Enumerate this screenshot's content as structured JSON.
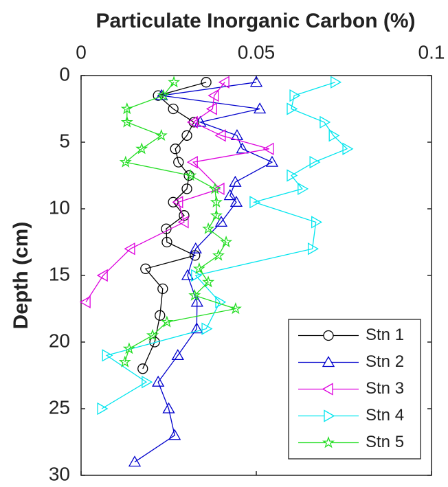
{
  "chart_data": {
    "type": "line",
    "title": "Particulate Inorganic Carbon (%)",
    "y_label": "Depth (cm)",
    "xlim": [
      0,
      0.1
    ],
    "xticks": [
      0,
      0.05,
      0.1
    ],
    "ylim": [
      0,
      30
    ],
    "yticks": [
      0,
      5,
      10,
      15,
      20,
      25,
      30
    ],
    "y_inverted": true,
    "x_axis_position": "top",
    "legend": "lower right",
    "series": [
      {
        "name": "Stn 1",
        "color": "#000000",
        "marker": "circle",
        "x": [
          0.0357,
          0.022,
          0.0263,
          0.0322,
          0.0302,
          0.0269,
          0.0278,
          0.0308,
          0.0302,
          0.0263,
          0.0294,
          0.0243,
          0.0245,
          0.0325,
          0.0184,
          0.0233,
          0.0225,
          0.021,
          0.0176
        ],
        "y": [
          0.5,
          1.5,
          2.5,
          3.5,
          4.5,
          5.5,
          6.5,
          7.5,
          8.5,
          9.5,
          10.5,
          11.5,
          12.5,
          13.5,
          14.5,
          16,
          18,
          20,
          22
        ]
      },
      {
        "name": "Stn 2",
        "color": "#0000cc",
        "marker": "triangle-up",
        "x": [
          0.05,
          0.023,
          0.051,
          0.034,
          0.0445,
          0.046,
          0.0545,
          0.044,
          0.0425,
          0.0443,
          0.04,
          0.0327,
          0.0304,
          0.0331,
          0.033,
          0.0276,
          0.022,
          0.025,
          0.0267,
          0.0153
        ],
        "y": [
          0.5,
          1.5,
          2.5,
          3.5,
          4.5,
          5.5,
          6.5,
          8,
          9,
          9.5,
          11,
          13,
          15,
          17,
          19,
          21,
          23,
          25,
          27,
          29
        ]
      },
      {
        "name": "Stn 3",
        "color": "#dd00dd",
        "marker": "triangle-left",
        "x": [
          0.041,
          0.038,
          0.0375,
          0.032,
          0.04,
          0.0537,
          0.032,
          0.0396,
          0.0278,
          0.0294,
          0.0141,
          0.0063,
          0.0014
        ],
        "y": [
          0.5,
          1.5,
          2.5,
          3.5,
          4.5,
          5.5,
          6.5,
          8.5,
          9.5,
          11,
          13,
          15,
          17
        ]
      },
      {
        "name": "Stn 4",
        "color": "#00e5ee",
        "marker": "triangle-right",
        "x": [
          0.0725,
          0.0608,
          0.06,
          0.0694,
          0.072,
          0.0759,
          0.0665,
          0.06,
          0.0631,
          0.0494,
          0.067,
          0.066,
          0.0327,
          0.0396,
          0.0357,
          0.0073,
          0.0186,
          0.0059
        ],
        "y": [
          0.5,
          1.5,
          2.5,
          3.5,
          4.5,
          5.5,
          6.5,
          7.5,
          8.5,
          9.5,
          11,
          13,
          15,
          17,
          19,
          21,
          23,
          25
        ]
      },
      {
        "name": "Stn 5",
        "color": "#22dd22",
        "marker": "star",
        "x": [
          0.0265,
          0.0235,
          0.0131,
          0.0131,
          0.0229,
          0.0173,
          0.0127,
          0.0312,
          0.0382,
          0.0386,
          0.0386,
          0.0363,
          0.0414,
          0.0392,
          0.0337,
          0.0363,
          0.0324,
          0.0441,
          0.0245,
          0.0204,
          0.0137,
          0.0125
        ],
        "y": [
          0.5,
          1.5,
          2.5,
          3.5,
          4.5,
          5.5,
          6.5,
          7.5,
          8.5,
          9.5,
          10.5,
          11.5,
          12.5,
          13.5,
          14.5,
          15.5,
          16.5,
          17.5,
          18.5,
          19.5,
          20.5,
          21.5
        ]
      }
    ]
  }
}
